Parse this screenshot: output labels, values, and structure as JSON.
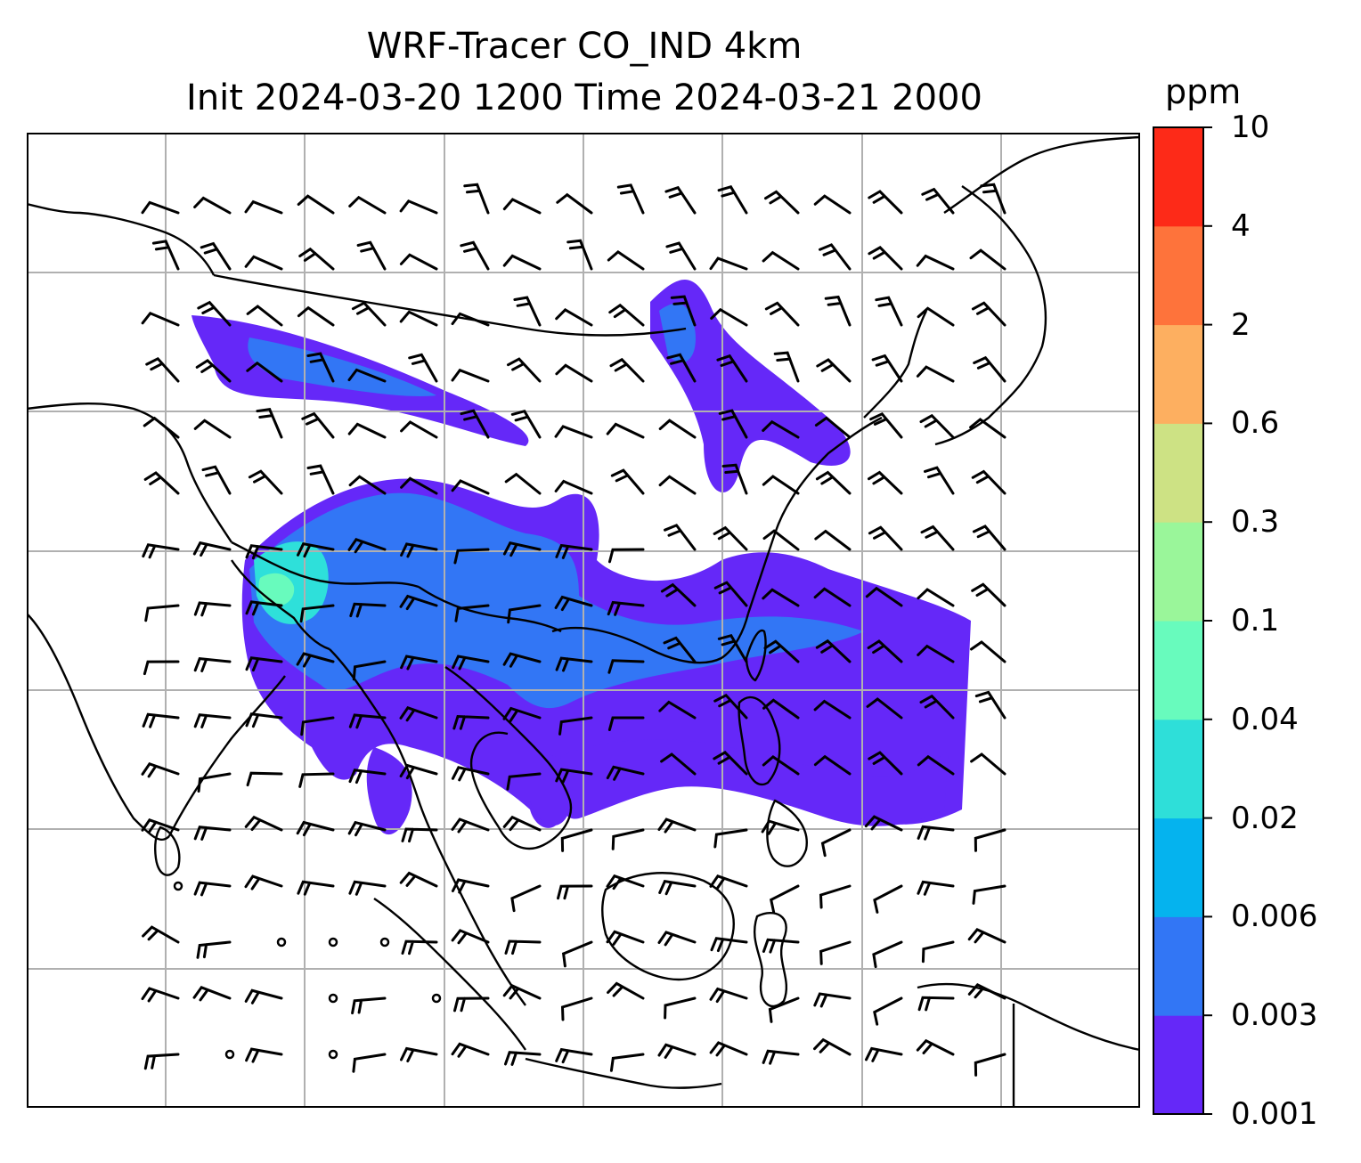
{
  "title": {
    "line1": "WRF-Tracer CO_IND 4km",
    "line2": "Init 2024-03-20 1200 Time 2024-03-21 2000"
  },
  "colorbar": {
    "unit": "ppm",
    "levels": [
      "0.001",
      "0.003",
      "0.006",
      "0.02",
      "0.04",
      "0.1",
      "0.3",
      "0.6",
      "2",
      "4",
      "10"
    ],
    "colors": [
      "#6528f8",
      "#3276f5",
      "#05b3ee",
      "#2edfd9",
      "#68fbbd",
      "#9af69a",
      "#cde284",
      "#fdaf60",
      "#fe733b",
      "#fd2a18"
    ]
  },
  "map": {
    "gridlines": "on",
    "overlay": "wind barbs",
    "plume_colors": {
      "low": "#6528f8",
      "mid": "#3276f5",
      "high": "#2ee0da",
      "peak": "#68fbbd"
    }
  }
}
